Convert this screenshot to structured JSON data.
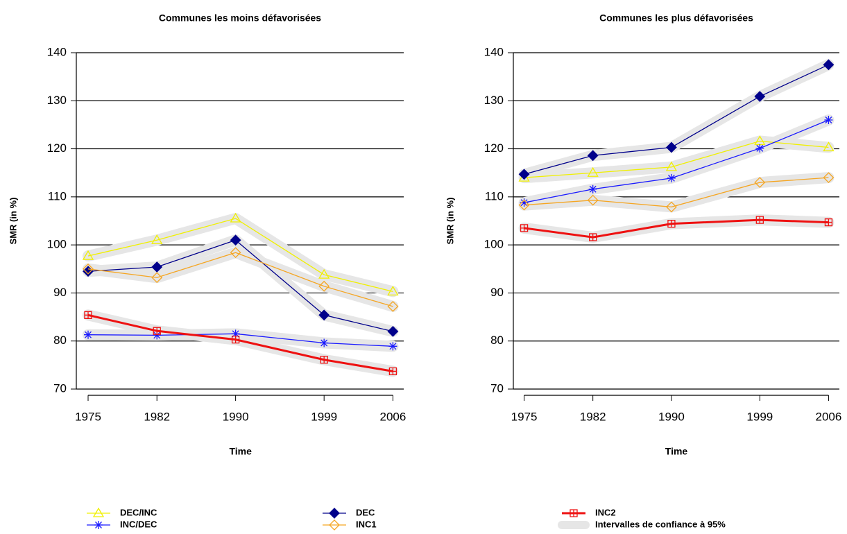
{
  "chart_data": [
    {
      "type": "line",
      "title": "Communes les moins défavorisées",
      "xlabel": "Time",
      "ylabel": "SMR (in %)",
      "x": [
        1975,
        1982,
        1990,
        1999,
        2006
      ],
      "xlim": [
        1973.8,
        2007.1
      ],
      "xticks": [
        1975,
        1982,
        1990,
        1999,
        2006
      ],
      "ylim": [
        70,
        140
      ],
      "yticks": [
        70,
        80,
        90,
        100,
        110,
        120,
        130,
        140
      ],
      "grid": true,
      "series": [
        {
          "name": "DEC/INC",
          "color": "#f0f000",
          "marker": "triangle",
          "values": [
            97.7,
            101.0,
            105.5,
            93.8,
            90.3
          ]
        },
        {
          "name": "INC/DEC",
          "color": "#1a1aff",
          "marker": "star",
          "values": [
            81.3,
            81.2,
            81.5,
            79.6,
            78.9
          ]
        },
        {
          "name": "DEC",
          "color": "#00008b",
          "marker": "diamond-filled",
          "values": [
            94.5,
            95.4,
            101.0,
            85.4,
            82.0
          ]
        },
        {
          "name": "INC1",
          "color": "#f5a623",
          "marker": "diamond",
          "values": [
            95.0,
            93.2,
            98.4,
            91.4,
            87.2
          ]
        },
        {
          "name": "INC2",
          "color": "#ee1111",
          "marker": "square-plus",
          "values": [
            85.4,
            82.1,
            80.3,
            76.1,
            73.7
          ]
        }
      ]
    },
    {
      "type": "line",
      "title": "Communes les plus défavorisées",
      "xlabel": "Time",
      "ylabel": "SMR (in %)",
      "x": [
        1975,
        1982,
        1990,
        1999,
        2006
      ],
      "xlim": [
        1973.9,
        2007.1
      ],
      "xticks": [
        1975,
        1982,
        1990,
        1999,
        2006
      ],
      "ylim": [
        70,
        140
      ],
      "yticks": [
        70,
        80,
        90,
        100,
        110,
        120,
        130,
        140
      ],
      "grid": true,
      "series": [
        {
          "name": "DEC/INC",
          "color": "#f0f000",
          "marker": "triangle",
          "values": [
            114.0,
            115.0,
            116.2,
            121.6,
            120.3
          ]
        },
        {
          "name": "INC/DEC",
          "color": "#1a1aff",
          "marker": "star",
          "values": [
            108.8,
            111.6,
            113.9,
            120.1,
            126.0
          ]
        },
        {
          "name": "DEC",
          "color": "#00008b",
          "marker": "diamond-filled",
          "values": [
            114.7,
            118.6,
            120.3,
            130.9,
            137.5
          ]
        },
        {
          "name": "INC1",
          "color": "#f5a623",
          "marker": "diamond",
          "values": [
            108.3,
            109.3,
            107.9,
            113.0,
            114.0
          ]
        },
        {
          "name": "INC2",
          "color": "#ee1111",
          "marker": "square-plus",
          "values": [
            103.5,
            101.6,
            104.4,
            105.2,
            104.7
          ]
        }
      ]
    }
  ],
  "legend": {
    "ci_label": "Intervalles de confiance à 95%",
    "ci_color": "#e6e6e6"
  }
}
